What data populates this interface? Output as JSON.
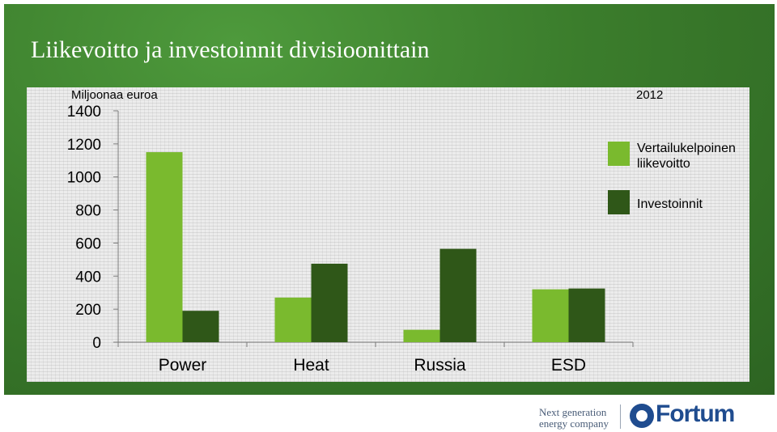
{
  "slide": {
    "title": "Liikevoitto ja investoinnit divisioonittain"
  },
  "chart_data": {
    "type": "bar",
    "title": "",
    "ylabel": "Miljoonaa euroa",
    "xlabel": "",
    "year_label": "2012",
    "categories": [
      "Power",
      "Heat",
      "Russia",
      "ESD"
    ],
    "series": [
      {
        "name": "Vertailukelpoinen liikevoitto",
        "values": [
          1150,
          270,
          75,
          320
        ],
        "color": "#7aba2e"
      },
      {
        "name": "Investoinnit",
        "values": [
          190,
          475,
          565,
          325
        ],
        "color": "#2f5718"
      }
    ],
    "ylim": [
      0,
      1400
    ],
    "yticks": [
      "0",
      "200",
      "400",
      "600",
      "800",
      "1000",
      "1200",
      "1400"
    ],
    "grid": false,
    "legend_position": "right"
  },
  "footer": {
    "tagline_line1": "Next generation",
    "tagline_line2": "energy company",
    "logo_text": "Fortum",
    "logo_color": "#1f4c8f"
  }
}
